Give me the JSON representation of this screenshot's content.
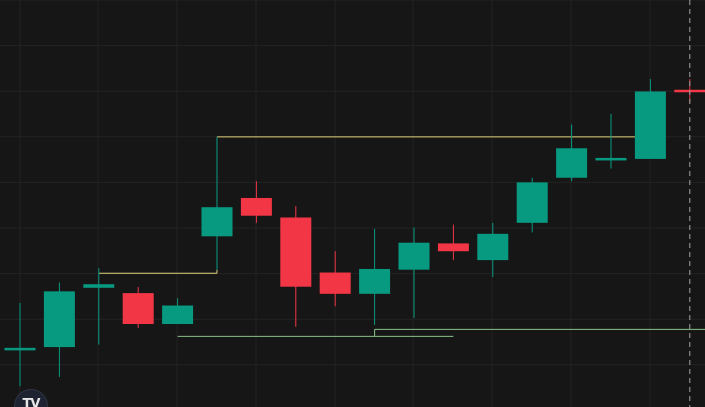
{
  "chart_data": {
    "type": "candlestick",
    "ylim": [
      0,
      100
    ],
    "grid": true,
    "colors": {
      "background": "#161616",
      "grid": "#232323",
      "up": "#089981",
      "down": "#f23645",
      "level_line": "#e2d27a",
      "support_line": "#89c28a",
      "crosshair": "#a3a3a3"
    },
    "candles": [
      {
        "index": 0,
        "open": 13.0,
        "close": 13.0,
        "high": 25.9,
        "low": 2.5
      },
      {
        "index": 1,
        "open": 13.5,
        "close": 29.2,
        "high": 31.7,
        "low": 5.1
      },
      {
        "index": 2,
        "open": 30.2,
        "close": 31.2,
        "high": 35.7,
        "low": 14.2
      },
      {
        "index": 3,
        "open": 28.7,
        "close": 20.0,
        "high": 30.4,
        "low": 18.9
      },
      {
        "index": 4,
        "open": 20.0,
        "close": 25.2,
        "high": 27.3,
        "low": 20.0
      },
      {
        "index": 5,
        "open": 44.7,
        "close": 52.9,
        "high": 72.7,
        "low": 35.2
      },
      {
        "index": 6,
        "open": 55.5,
        "close": 50.5,
        "high": 60.2,
        "low": 48.5
      },
      {
        "index": 7,
        "open": 50.0,
        "close": 30.5,
        "high": 53.2,
        "low": 19.2
      },
      {
        "index": 8,
        "open": 34.5,
        "close": 28.5,
        "high": 40.5,
        "low": 25.0
      },
      {
        "index": 9,
        "open": 28.5,
        "close": 35.5,
        "high": 46.8,
        "low": 19.7
      },
      {
        "index": 10,
        "open": 35.3,
        "close": 42.9,
        "high": 47.2,
        "low": 21.7
      },
      {
        "index": 11,
        "open": 42.7,
        "close": 40.5,
        "high": 48.0,
        "low": 38.0
      },
      {
        "index": 12,
        "open": 38.0,
        "close": 45.4,
        "high": 48.5,
        "low": 33.2
      },
      {
        "index": 13,
        "open": 48.5,
        "close": 59.9,
        "high": 61.2,
        "low": 45.8
      },
      {
        "index": 14,
        "open": 61.2,
        "close": 69.5,
        "high": 76.2,
        "low": 60.2
      },
      {
        "index": 15,
        "open": 66.0,
        "close": 66.5,
        "high": 79.2,
        "low": 63.8
      },
      {
        "index": 16,
        "open": 66.5,
        "close": 85.5,
        "high": 89.0,
        "low": 66.5
      },
      {
        "index": 17,
        "open": 85.7,
        "close": 85.3,
        "high": 89.0,
        "low": 82.3
      }
    ],
    "reference_lines": [
      {
        "kind": "level",
        "value": 34.3,
        "from_index": 2,
        "to_index": 5
      },
      {
        "kind": "level",
        "value": 72.7,
        "from_index": 5,
        "to_index": 16
      },
      {
        "kind": "support",
        "value": 16.5,
        "from_index": 4,
        "to_index": 11
      },
      {
        "kind": "support",
        "value": 18.5,
        "from_index": 9,
        "to_index": 17
      }
    ],
    "crosshair_index": 17
  },
  "logo": {
    "text": "TV",
    "icon": "tradingview-logo-icon"
  }
}
